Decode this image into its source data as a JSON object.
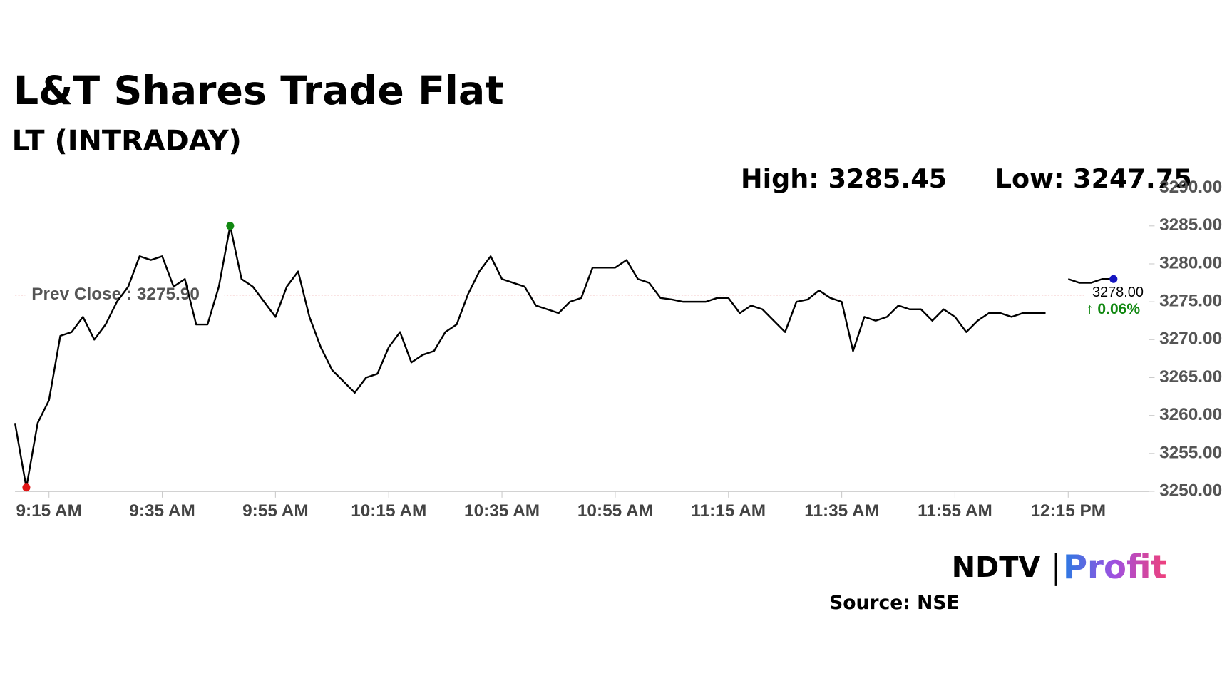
{
  "chart_data": {
    "type": "line",
    "title": "L&T Shares Trade Flat",
    "subtitle": "LT (INTRADAY)",
    "high_label": "High: 3285.45",
    "low_label": "Low: 3247.75",
    "prev_close": {
      "value": 3275.9,
      "label": "Prev Close : 3275.90"
    },
    "last_label": "3278.00",
    "change_label": "↑ 0.06%",
    "source": "Source: NSE",
    "logo": [
      "NDTV",
      "Profit"
    ],
    "x": [
      "9:09 AM",
      "9:11 AM",
      "9:13 AM",
      "9:15 AM",
      "9:17 AM",
      "9:19 AM",
      "9:21 AM",
      "9:23 AM",
      "9:25 AM",
      "9:27 AM",
      "9:29 AM",
      "9:31 AM",
      "9:33 AM",
      "9:35 AM",
      "9:37 AM",
      "9:39 AM",
      "9:41 AM",
      "9:43 AM",
      "9:45 AM",
      "9:47 AM",
      "9:49 AM",
      "9:51 AM",
      "9:53 AM",
      "9:55 AM",
      "9:57 AM",
      "9:59 AM",
      "10:01 AM",
      "10:03 AM",
      "10:05 AM",
      "10:07 AM",
      "10:09 AM",
      "10:11 AM",
      "10:13 AM",
      "10:15 AM",
      "10:17 AM",
      "10:19 AM",
      "10:21 AM",
      "10:23 AM",
      "10:25 AM",
      "10:27 AM",
      "10:29 AM",
      "10:31 AM",
      "10:33 AM",
      "10:35 AM",
      "10:37 AM",
      "10:39 AM",
      "10:41 AM",
      "10:43 AM",
      "10:45 AM",
      "10:47 AM",
      "10:49 AM",
      "10:51 AM",
      "10:53 AM",
      "10:55 AM",
      "10:57 AM",
      "10:59 AM",
      "11:01 AM",
      "11:03 AM",
      "11:05 AM",
      "11:07 AM",
      "11:09 AM",
      "11:11 AM",
      "11:13 AM",
      "11:15 AM",
      "11:17 AM",
      "11:19 AM",
      "11:21 AM",
      "11:23 AM",
      "11:25 AM",
      "11:27 AM",
      "11:29 AM",
      "11:31 AM",
      "11:33 AM",
      "11:35 AM",
      "11:37 AM",
      "11:39 AM",
      "11:41 AM",
      "11:43 AM",
      "11:45 AM",
      "11:47 AM",
      "11:49 AM",
      "11:51 AM",
      "11:53 AM",
      "11:55 AM",
      "11:57 AM",
      "11:59 AM",
      "12:01 PM",
      "12:03 PM",
      "12:05 PM",
      "12:07 PM",
      "12:09 PM",
      "12:11 PM",
      "12:13 PM",
      "12:15 PM",
      "12:17 PM",
      "12:19 PM",
      "12:21 PM",
      "12:23 PM"
    ],
    "values": [
      3259,
      3250.5,
      3259,
      3262,
      3270.5,
      3271,
      3273,
      3270,
      3272,
      3275,
      3277,
      3281,
      3280.5,
      3281,
      3277,
      3278,
      3272,
      3272,
      3277,
      3285,
      3278,
      3277,
      3275,
      3273,
      3277,
      3279,
      3273,
      3269,
      3266,
      3264.5,
      3263,
      3265,
      3265.5,
      3269,
      3271,
      3267,
      3268,
      3268.5,
      3271,
      3272,
      3276,
      3279,
      3281,
      3278,
      3277.5,
      3277,
      3274.5,
      3274,
      3273.5,
      3275,
      3275.5,
      3279.5,
      3279.5,
      3279.5,
      3280.5,
      3278,
      3277.5,
      3275.5,
      3275.3,
      3275,
      3275,
      3275,
      3275.5,
      3275.5,
      3273.5,
      3274.5,
      3274,
      3272.5,
      3271,
      3275,
      3275.3,
      3276.5,
      3275.5,
      3275,
      3268.5,
      3273,
      3272.5,
      3273,
      3274.5,
      3274,
      3274,
      3272.5,
      3274,
      3273,
      3271,
      3272.5,
      3273.5,
      3273.5,
      3273,
      3273.5,
      3273.5,
      3273.5,
      null,
      3278,
      3277.5,
      3277.5,
      3278,
      3278
    ],
    "color": "#000000",
    "marker_colors": {
      "high": "#118811",
      "low": "#e01515",
      "last": "#1515c0"
    },
    "prev_close_color": "#d01010",
    "xticks": [
      "9:15 AM",
      "9:35 AM",
      "9:55 AM",
      "10:15 AM",
      "10:35 AM",
      "10:55 AM",
      "11:15 AM",
      "11:35 AM",
      "11:55 AM",
      "12:15 PM"
    ],
    "ylim": [
      3250,
      3290
    ],
    "yticks": [
      {
        "value": 3290,
        "label": "3290.00"
      },
      {
        "value": 3285,
        "label": "3285.00"
      },
      {
        "value": 3280,
        "label": "3280.00"
      },
      {
        "value": 3275,
        "label": "3275.00"
      },
      {
        "value": 3270,
        "label": "3270.00"
      },
      {
        "value": 3265,
        "label": "3265.00"
      },
      {
        "value": 3260,
        "label": "3260.00"
      },
      {
        "value": 3255,
        "label": "3255.00"
      },
      {
        "value": 3250,
        "label": "3250.00"
      }
    ],
    "grid": false
  }
}
